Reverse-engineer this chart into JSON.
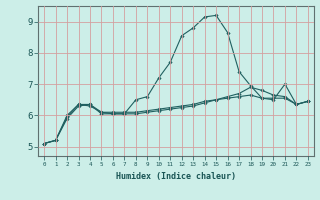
{
  "xlabel": "Humidex (Indice chaleur)",
  "ylabel": "",
  "bg_color": "#cceee8",
  "grid_color": "#d4a0a0",
  "line_color": "#206060",
  "xlim": [
    -0.5,
    23.5
  ],
  "ylim": [
    4.7,
    9.5
  ],
  "xticks": [
    0,
    1,
    2,
    3,
    4,
    5,
    6,
    7,
    8,
    9,
    10,
    11,
    12,
    13,
    14,
    15,
    16,
    17,
    18,
    19,
    20,
    21,
    22,
    23
  ],
  "yticks": [
    5,
    6,
    7,
    8,
    9
  ],
  "line1_x": [
    0,
    1,
    2,
    3,
    4,
    5,
    6,
    7,
    8,
    9,
    10,
    11,
    12,
    13,
    14,
    15,
    16,
    17,
    18,
    19,
    20,
    21,
    22,
    23
  ],
  "line1_y": [
    5.1,
    5.2,
    5.9,
    6.3,
    6.35,
    6.05,
    6.05,
    6.05,
    6.5,
    6.6,
    7.2,
    7.7,
    8.55,
    8.8,
    9.15,
    9.2,
    8.65,
    7.4,
    6.95,
    6.55,
    6.5,
    7.0,
    6.35,
    6.45
  ],
  "line2_x": [
    0,
    1,
    2,
    3,
    4,
    5,
    6,
    7,
    8,
    9,
    10,
    11,
    12,
    13,
    14,
    15,
    16,
    17,
    18,
    19,
    20,
    21,
    22,
    23
  ],
  "line2_y": [
    5.1,
    5.2,
    5.95,
    6.35,
    6.35,
    6.1,
    6.1,
    6.1,
    6.1,
    6.15,
    6.2,
    6.25,
    6.3,
    6.35,
    6.45,
    6.5,
    6.55,
    6.6,
    6.65,
    6.55,
    6.55,
    6.55,
    6.35,
    6.45
  ],
  "line3_x": [
    0,
    1,
    2,
    3,
    4,
    5,
    6,
    7,
    8,
    9,
    10,
    11,
    12,
    13,
    14,
    15,
    16,
    17,
    18,
    19,
    20,
    21,
    22,
    23
  ],
  "line3_y": [
    5.1,
    5.2,
    6.0,
    6.35,
    6.3,
    6.1,
    6.05,
    6.05,
    6.05,
    6.1,
    6.15,
    6.2,
    6.25,
    6.3,
    6.4,
    6.5,
    6.6,
    6.7,
    6.9,
    6.8,
    6.65,
    6.6,
    6.35,
    6.45
  ]
}
